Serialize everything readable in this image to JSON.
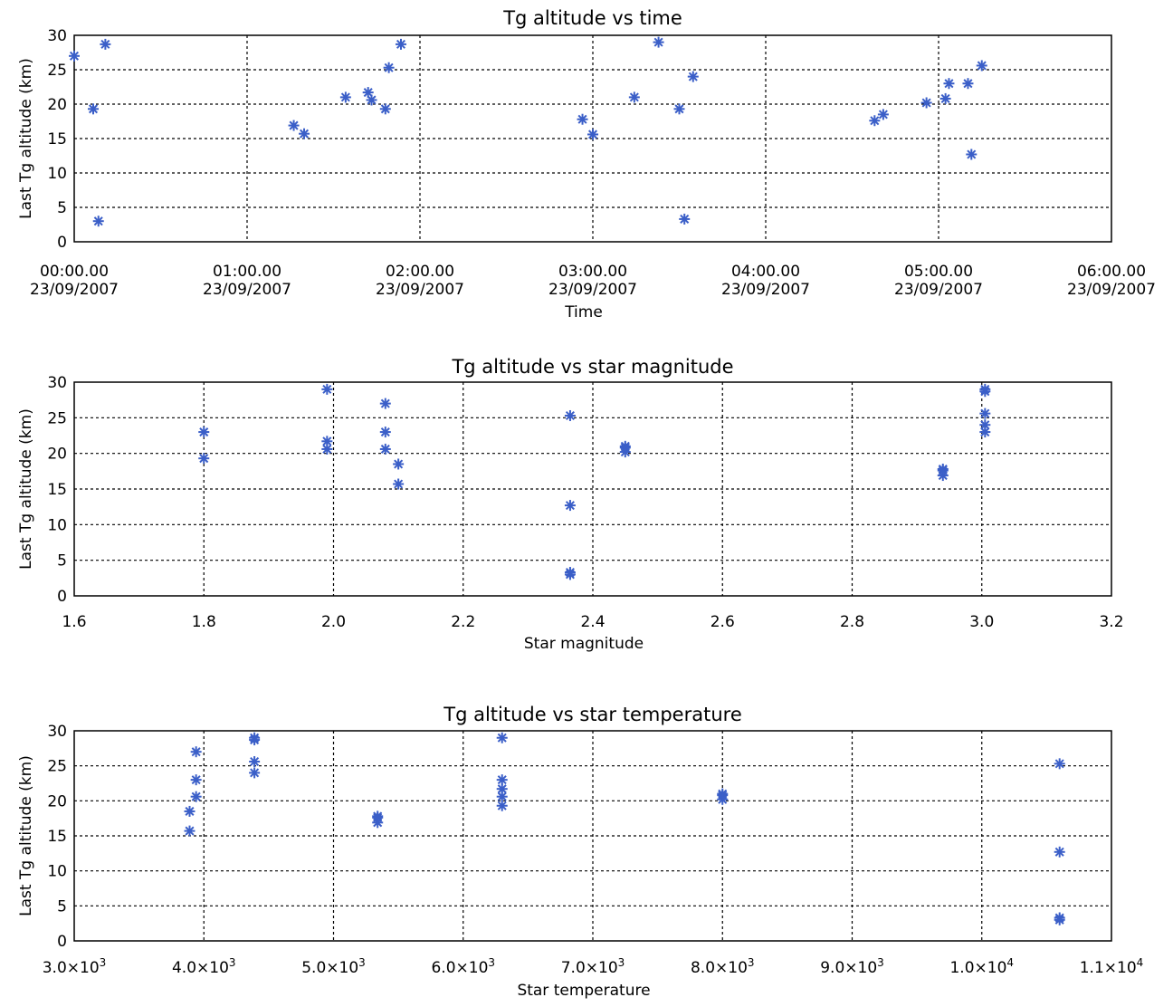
{
  "colors": {
    "marker": "#3b5fc8",
    "axis": "#000000",
    "background": "#ffffff"
  },
  "chart_data": [
    {
      "type": "scatter",
      "title": "Tg altitude vs time",
      "xlabel": "Time",
      "ylabel": "Last Tg altitude (km)",
      "xlim": [
        0,
        6
      ],
      "ylim": [
        0,
        30
      ],
      "x_unit": "hours since 00:00:00 23/09/2007",
      "x_ticks": [
        0,
        1,
        2,
        3,
        4,
        5,
        6
      ],
      "x_tick_labels": [
        [
          "00:00.00",
          "23/09/2007"
        ],
        [
          "01:00.00",
          "23/09/2007"
        ],
        [
          "02:00.00",
          "23/09/2007"
        ],
        [
          "03:00.00",
          "23/09/2007"
        ],
        [
          "04:00.00",
          "23/09/2007"
        ],
        [
          "05:00.00",
          "23/09/2007"
        ],
        [
          "06:00.00",
          "23/09/2007"
        ]
      ],
      "y_ticks": [
        0,
        5,
        10,
        15,
        20,
        25,
        30
      ],
      "y_tick_labels": [
        "0",
        "5",
        "10",
        "15",
        "20",
        "25",
        "30"
      ],
      "grid": true,
      "marker": "asterisk",
      "points": [
        [
          0.0,
          27
        ],
        [
          0.11,
          19.3
        ],
        [
          0.14,
          3
        ],
        [
          0.18,
          28.7
        ],
        [
          1.27,
          16.9
        ],
        [
          1.33,
          15.7
        ],
        [
          1.57,
          21
        ],
        [
          1.7,
          21.7
        ],
        [
          1.72,
          20.6
        ],
        [
          1.8,
          19.3
        ],
        [
          1.82,
          25.3
        ],
        [
          1.89,
          28.7
        ],
        [
          2.94,
          17.8
        ],
        [
          3.0,
          15.6
        ],
        [
          3.24,
          21
        ],
        [
          3.38,
          29
        ],
        [
          3.5,
          19.3
        ],
        [
          3.53,
          3.3
        ],
        [
          3.58,
          24
        ],
        [
          4.63,
          17.6
        ],
        [
          4.68,
          18.5
        ],
        [
          4.93,
          20.2
        ],
        [
          5.04,
          20.8
        ],
        [
          5.06,
          23
        ],
        [
          5.17,
          23
        ],
        [
          5.19,
          12.7
        ],
        [
          5.25,
          25.6
        ]
      ]
    },
    {
      "type": "scatter",
      "title": "Tg altitude vs star magnitude",
      "xlabel": "Star magnitude",
      "ylabel": "Last Tg altitude (km)",
      "xlim": [
        1.6,
        3.2
      ],
      "ylim": [
        0,
        30
      ],
      "x_ticks": [
        1.6,
        1.8,
        2.0,
        2.2,
        2.4,
        2.6,
        2.8,
        3.0,
        3.2
      ],
      "x_tick_labels": [
        "1.6",
        "1.8",
        "2.0",
        "2.2",
        "2.4",
        "2.6",
        "2.8",
        "3.0",
        "3.2"
      ],
      "y_ticks": [
        0,
        5,
        10,
        15,
        20,
        25,
        30
      ],
      "y_tick_labels": [
        "0",
        "5",
        "10",
        "15",
        "20",
        "25",
        "30"
      ],
      "grid": true,
      "marker": "asterisk",
      "points": [
        [
          1.8,
          23
        ],
        [
          1.8,
          19.3
        ],
        [
          1.99,
          29
        ],
        [
          1.99,
          21.7
        ],
        [
          1.99,
          20.6
        ],
        [
          2.08,
          27
        ],
        [
          2.08,
          23
        ],
        [
          2.08,
          20.6
        ],
        [
          2.1,
          18.5
        ],
        [
          2.1,
          15.7
        ],
        [
          2.365,
          25.3
        ],
        [
          2.365,
          12.7
        ],
        [
          2.365,
          3.3
        ],
        [
          2.365,
          3
        ],
        [
          2.45,
          21
        ],
        [
          2.45,
          20.8
        ],
        [
          2.45,
          20.2
        ],
        [
          2.94,
          17.8
        ],
        [
          2.94,
          17.6
        ],
        [
          2.94,
          16.9
        ],
        [
          3.005,
          29
        ],
        [
          3.005,
          28.7
        ],
        [
          3.005,
          25.6
        ],
        [
          3.005,
          24
        ],
        [
          3.005,
          23
        ]
      ]
    },
    {
      "type": "scatter",
      "title": "Tg altitude vs star temperature",
      "xlabel": "Star temperature",
      "ylabel": "Last Tg altitude (km)",
      "xlim": [
        3000,
        11000
      ],
      "ylim": [
        0,
        30
      ],
      "x_ticks": [
        3000,
        4000,
        5000,
        6000,
        7000,
        8000,
        9000,
        10000,
        11000
      ],
      "x_tick_labels": [
        [
          "3.0×10",
          "3"
        ],
        [
          "4.0×10",
          "3"
        ],
        [
          "5.0×10",
          "3"
        ],
        [
          "6.0×10",
          "3"
        ],
        [
          "7.0×10",
          "3"
        ],
        [
          "8.0×10",
          "3"
        ],
        [
          "9.0×10",
          "3"
        ],
        [
          "1.0×10",
          "4"
        ],
        [
          "1.1×10",
          "4"
        ]
      ],
      "y_ticks": [
        0,
        5,
        10,
        15,
        20,
        25,
        30
      ],
      "y_tick_labels": [
        "0",
        "5",
        "10",
        "15",
        "20",
        "25",
        "30"
      ],
      "grid": true,
      "marker": "asterisk",
      "points": [
        [
          3890,
          18.5
        ],
        [
          3890,
          15.7
        ],
        [
          3940,
          27
        ],
        [
          3940,
          23
        ],
        [
          3940,
          20.6
        ],
        [
          4390,
          29
        ],
        [
          4390,
          28.7
        ],
        [
          4390,
          25.6
        ],
        [
          4390,
          24
        ],
        [
          5340,
          17.8
        ],
        [
          5340,
          17.6
        ],
        [
          5340,
          16.9
        ],
        [
          6300,
          29
        ],
        [
          6300,
          23
        ],
        [
          6300,
          21.7
        ],
        [
          6300,
          20.6
        ],
        [
          6300,
          19.3
        ],
        [
          8000,
          21
        ],
        [
          8000,
          20.8
        ],
        [
          8000,
          20.2
        ],
        [
          10600,
          25.3
        ],
        [
          10600,
          12.7
        ],
        [
          10600,
          3.3
        ],
        [
          10600,
          3
        ]
      ]
    }
  ]
}
